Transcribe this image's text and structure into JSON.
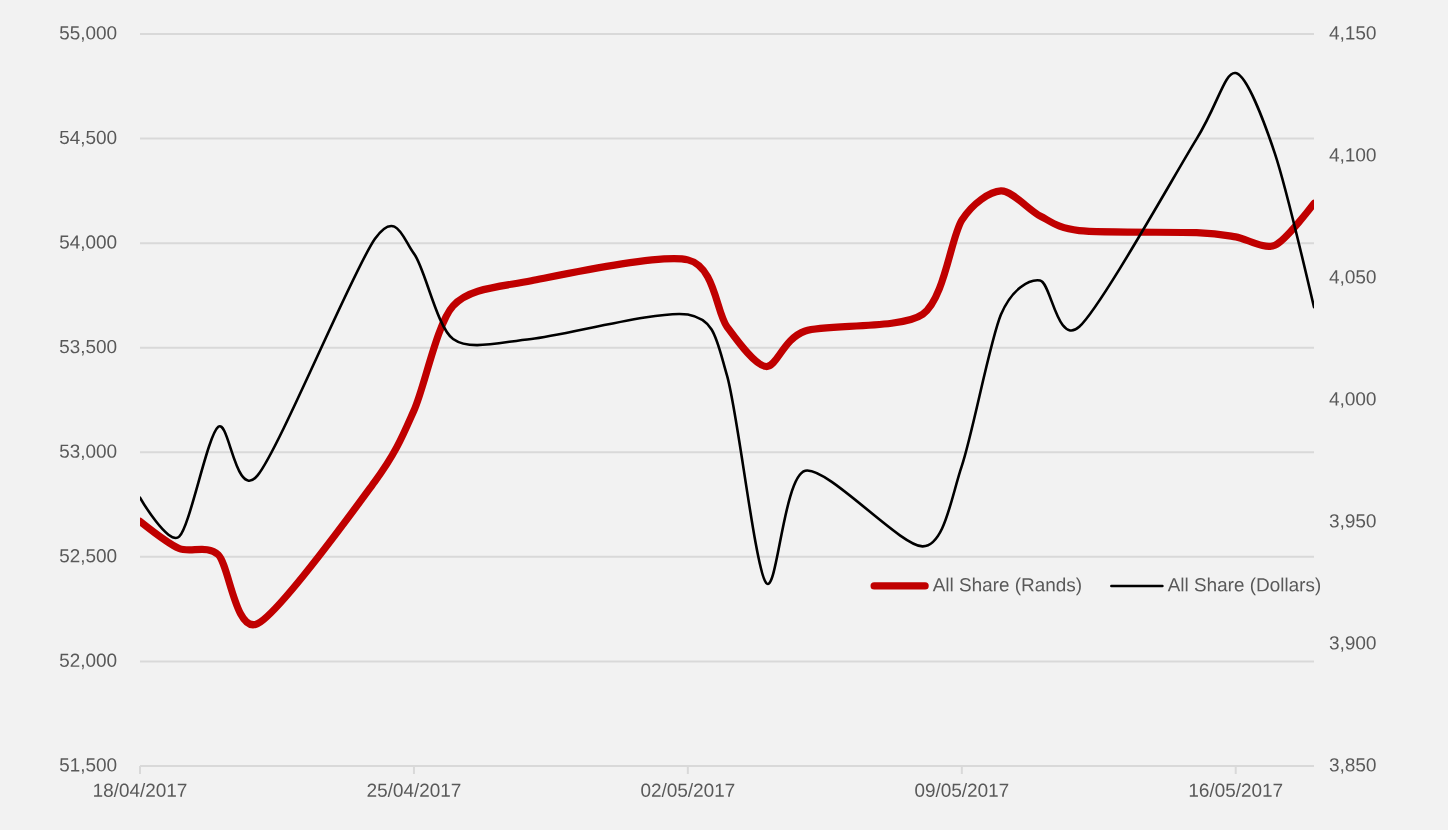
{
  "chart_data": {
    "type": "line",
    "x": [
      "2017-04-18",
      "2017-04-19",
      "2017-04-20",
      "2017-04-21",
      "2017-04-24",
      "2017-04-25",
      "2017-04-26",
      "2017-04-28",
      "2017-05-02",
      "2017-05-03",
      "2017-05-04",
      "2017-05-05",
      "2017-05-08",
      "2017-05-09",
      "2017-05-10",
      "2017-05-11",
      "2017-05-12",
      "2017-05-15",
      "2017-05-16",
      "2017-05-17",
      "2017-05-18"
    ],
    "series": [
      {
        "name": "All Share (Rands)",
        "color": "#c00000",
        "values": [
          52670,
          52540,
          52510,
          52180,
          52860,
          53200,
          53700,
          53820,
          53920,
          53600,
          53410,
          53580,
          53660,
          54110,
          54250,
          54130,
          54060,
          54050,
          54030,
          53990,
          54190
        ]
      },
      {
        "name": "All Share (Dollars)",
        "color": "#000000",
        "axis": "y2",
        "values": [
          3960,
          3944,
          3989,
          3969,
          4066,
          4060,
          4025,
          4025,
          4035,
          4010,
          3925,
          3971,
          3940,
          3973,
          4035,
          4049,
          4030,
          4107,
          4134,
          4101,
          4038
        ]
      }
    ],
    "xlim": [
      "2017-04-18",
      "2017-05-18"
    ],
    "xticks": [
      {
        "value": "2017-04-18",
        "label": "18/04/2017"
      },
      {
        "value": "2017-04-25",
        "label": "25/04/2017"
      },
      {
        "value": "2017-05-02",
        "label": "02/05/2017"
      },
      {
        "value": "2017-05-09",
        "label": "09/05/2017"
      },
      {
        "value": "2017-05-16",
        "label": "16/05/2017"
      }
    ],
    "ylim": [
      51500,
      55000
    ],
    "yticks": [
      {
        "value": 51500,
        "label": "51,500"
      },
      {
        "value": 52000,
        "label": "52,000"
      },
      {
        "value": 52500,
        "label": "52,500"
      },
      {
        "value": 53000,
        "label": "53,000"
      },
      {
        "value": 53500,
        "label": "53,500"
      },
      {
        "value": 54000,
        "label": "54,000"
      },
      {
        "value": 54500,
        "label": "54,500"
      },
      {
        "value": 55000,
        "label": "55,000"
      }
    ],
    "y2lim": [
      3850,
      4150
    ],
    "y2ticks": [
      {
        "value": 3850,
        "label": "3,850"
      },
      {
        "value": 3900,
        "label": "3,900"
      },
      {
        "value": 3950,
        "label": "3,950"
      },
      {
        "value": 4000,
        "label": "4,000"
      },
      {
        "value": 4050,
        "label": "4,050"
      },
      {
        "value": 4100,
        "label": "4,100"
      },
      {
        "value": 4150,
        "label": "4,150"
      }
    ],
    "grid": "y",
    "legend": "bottom right",
    "marker": "none",
    "line_style": "solid"
  }
}
